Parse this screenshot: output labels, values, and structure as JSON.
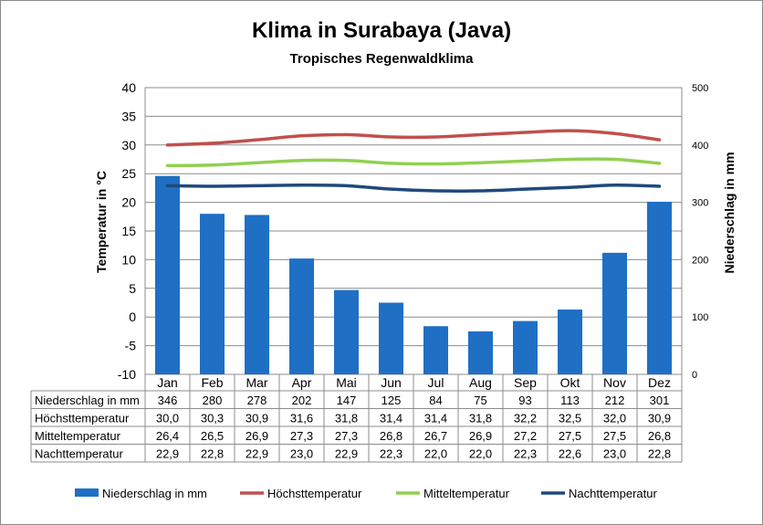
{
  "chart_data": {
    "type": "bar+line",
    "title": "Klima in Surabaya (Java)",
    "subtitle": "Tropisches Regenwaldklima",
    "ylabel_left": "Temperatur in °C",
    "ylabel_right": "Niederschlag in mm",
    "ylim_left": [
      -10,
      40
    ],
    "yticks_left": [
      "40",
      "35",
      "30",
      "25",
      "20",
      "15",
      "10",
      "5",
      "0",
      "-5",
      "-10"
    ],
    "ylim_right": [
      0,
      500
    ],
    "yticks_right": [
      "500",
      "400",
      "300",
      "200",
      "100",
      "0"
    ],
    "grid": true,
    "legend_position": "bottom",
    "categories": [
      "Jan",
      "Feb",
      "Mar",
      "Apr",
      "Mai",
      "Jun",
      "Jul",
      "Aug",
      "Sep",
      "Okt",
      "Nov",
      "Dez"
    ],
    "series": [
      {
        "name": "Niederschlag in mm",
        "type": "bar",
        "axis": "right",
        "color": "#1f6fc5",
        "values": [
          346,
          280,
          278,
          202,
          147,
          125,
          84,
          75,
          93,
          113,
          212,
          301
        ],
        "labels": [
          "346",
          "280",
          "278",
          "202",
          "147",
          "125",
          "84",
          "75",
          "93",
          "113",
          "212",
          "301"
        ]
      },
      {
        "name": "Höchsttemperatur",
        "type": "line",
        "axis": "left",
        "color": "#c0504d",
        "values": [
          30.0,
          30.3,
          30.9,
          31.6,
          31.8,
          31.4,
          31.4,
          31.8,
          32.2,
          32.5,
          32.0,
          30.9
        ],
        "labels": [
          "30,0",
          "30,3",
          "30,9",
          "31,6",
          "31,8",
          "31,4",
          "31,4",
          "31,8",
          "32,2",
          "32,5",
          "32,0",
          "30,9"
        ]
      },
      {
        "name": "Mitteltemperatur",
        "type": "line",
        "axis": "left",
        "color": "#92d050",
        "values": [
          26.4,
          26.5,
          26.9,
          27.3,
          27.3,
          26.8,
          26.7,
          26.9,
          27.2,
          27.5,
          27.5,
          26.8
        ],
        "labels": [
          "26,4",
          "26,5",
          "26,9",
          "27,3",
          "27,3",
          "26,8",
          "26,7",
          "26,9",
          "27,2",
          "27,5",
          "27,5",
          "26,8"
        ]
      },
      {
        "name": "Nachttemperatur",
        "type": "line",
        "axis": "left",
        "color": "#1f497d",
        "values": [
          22.9,
          22.8,
          22.9,
          23.0,
          22.9,
          22.3,
          22.0,
          22.0,
          22.3,
          22.6,
          23.0,
          22.8
        ],
        "labels": [
          "22,9",
          "22,8",
          "22,9",
          "23,0",
          "22,9",
          "22,3",
          "22,0",
          "22,0",
          "22,3",
          "22,6",
          "23,0",
          "22,8"
        ]
      }
    ]
  }
}
